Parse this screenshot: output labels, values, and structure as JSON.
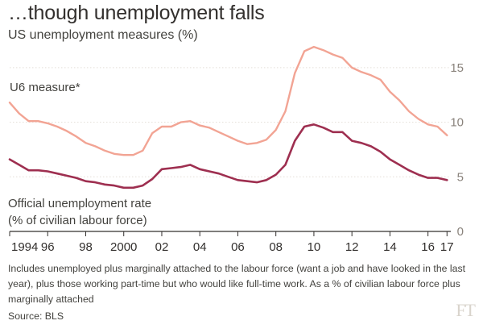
{
  "title": "…though unemployment falls",
  "subtitle": "US unemployment measures (%)",
  "note": "Includes unemployed plus marginally attached to the labour force (want a job and have looked in the last year), plus those working part-time but who would like full-time work. As a % of civilian labour force plus marginally attached",
  "source": "Source: BLS",
  "logo": "FT",
  "chart_data": {
    "type": "line",
    "xlim": [
      1994.0,
      2017.2
    ],
    "ylim": [
      0,
      17.5
    ],
    "yticks": [
      0,
      5,
      10,
      15
    ],
    "ytick_labels": [
      "0",
      "5",
      "10",
      "15"
    ],
    "xticks": [
      1994,
      1996,
      1998,
      2000,
      2002,
      2004,
      2006,
      2008,
      2010,
      2012,
      2014,
      2016,
      2017
    ],
    "xtick_labels": [
      "1994",
      "96",
      "98",
      "2000",
      "02",
      "04",
      "06",
      "08",
      "10",
      "12",
      "14",
      "16",
      "17"
    ],
    "grid": true,
    "colors": {
      "u6": "#f2a494",
      "official": "#9e2f50",
      "grid": "#e4ded8",
      "axis": "#33302e"
    },
    "series": [
      {
        "name": "U6 measure*",
        "key": "u6",
        "x": [
          1994.0,
          1994.5,
          1995.0,
          1995.5,
          1996.0,
          1996.5,
          1997.0,
          1997.5,
          1998.0,
          1998.5,
          1999.0,
          1999.5,
          2000.0,
          2000.5,
          2001.0,
          2001.5,
          2002.0,
          2002.5,
          2003.0,
          2003.5,
          2004.0,
          2004.5,
          2005.0,
          2005.5,
          2006.0,
          2006.5,
          2007.0,
          2007.5,
          2008.0,
          2008.5,
          2009.0,
          2009.5,
          2010.0,
          2010.5,
          2011.0,
          2011.5,
          2012.0,
          2012.5,
          2013.0,
          2013.5,
          2014.0,
          2014.5,
          2015.0,
          2015.5,
          2016.0,
          2016.5,
          2017.0
        ],
        "values": [
          11.8,
          10.8,
          10.1,
          10.1,
          9.9,
          9.6,
          9.2,
          8.7,
          8.1,
          7.8,
          7.4,
          7.1,
          7.0,
          7.0,
          7.4,
          9.0,
          9.6,
          9.6,
          10.0,
          10.1,
          9.7,
          9.5,
          9.1,
          8.7,
          8.3,
          8.0,
          8.1,
          8.4,
          9.3,
          11.0,
          14.5,
          16.5,
          16.9,
          16.6,
          16.2,
          15.9,
          15.0,
          14.6,
          14.3,
          13.9,
          12.8,
          12.0,
          11.0,
          10.3,
          9.8,
          9.6,
          8.8
        ]
      },
      {
        "name": "Official unemployment rate (% of civilian labour force)",
        "key": "official",
        "x": [
          1994.0,
          1994.5,
          1995.0,
          1995.5,
          1996.0,
          1996.5,
          1997.0,
          1997.5,
          1998.0,
          1998.5,
          1999.0,
          1999.5,
          2000.0,
          2000.5,
          2001.0,
          2001.5,
          2002.0,
          2002.5,
          2003.0,
          2003.5,
          2004.0,
          2004.5,
          2005.0,
          2005.5,
          2006.0,
          2006.5,
          2007.0,
          2007.5,
          2008.0,
          2008.5,
          2009.0,
          2009.5,
          2010.0,
          2010.5,
          2011.0,
          2011.5,
          2012.0,
          2012.5,
          2013.0,
          2013.5,
          2014.0,
          2014.5,
          2015.0,
          2015.5,
          2016.0,
          2016.5,
          2017.0
        ],
        "values": [
          6.6,
          6.1,
          5.6,
          5.6,
          5.5,
          5.3,
          5.1,
          4.9,
          4.6,
          4.5,
          4.3,
          4.2,
          4.0,
          4.0,
          4.2,
          4.8,
          5.7,
          5.8,
          5.9,
          6.1,
          5.7,
          5.5,
          5.3,
          5.0,
          4.7,
          4.6,
          4.5,
          4.7,
          5.2,
          6.1,
          8.3,
          9.6,
          9.8,
          9.5,
          9.1,
          9.1,
          8.3,
          8.1,
          7.8,
          7.3,
          6.6,
          6.1,
          5.6,
          5.2,
          4.9,
          4.9,
          4.7
        ]
      }
    ],
    "labels": {
      "u6": "U6 measure*",
      "official_line1": "Official unemployment rate",
      "official_line2": "(% of civilian labour force)"
    }
  }
}
